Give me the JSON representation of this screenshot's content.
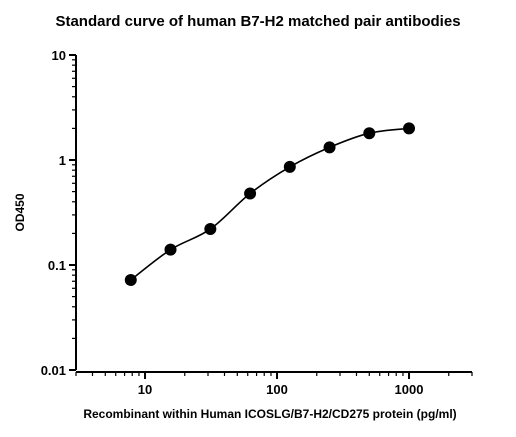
{
  "chart_data": {
    "type": "scatter",
    "title": "Standard curve of human B7-H2 matched pair antibodies",
    "xlabel": "Recombinant within Human ICOSLG/B7-H2/CD275 protein (pg/ml)",
    "ylabel": "OD450",
    "x_scale": "log",
    "y_scale": "log",
    "xlim": [
      3,
      3000
    ],
    "ylim": [
      0.01,
      10
    ],
    "x_ticks": [
      10,
      100,
      1000
    ],
    "x_tick_labels": [
      "10",
      "100",
      "1000"
    ],
    "y_ticks": [
      0.01,
      0.1,
      1,
      10
    ],
    "y_tick_labels": [
      "0.01",
      "0.1",
      "1",
      "10"
    ],
    "grid": false,
    "fit_line": true,
    "marker_color": "#000000",
    "line_color": "#000000",
    "series": [
      {
        "x": [
          7.8,
          15.6,
          31.25,
          62.5,
          125,
          250,
          500,
          1000
        ],
        "y": [
          0.072,
          0.14,
          0.22,
          0.48,
          0.86,
          1.32,
          1.8,
          2.0
        ]
      }
    ]
  }
}
